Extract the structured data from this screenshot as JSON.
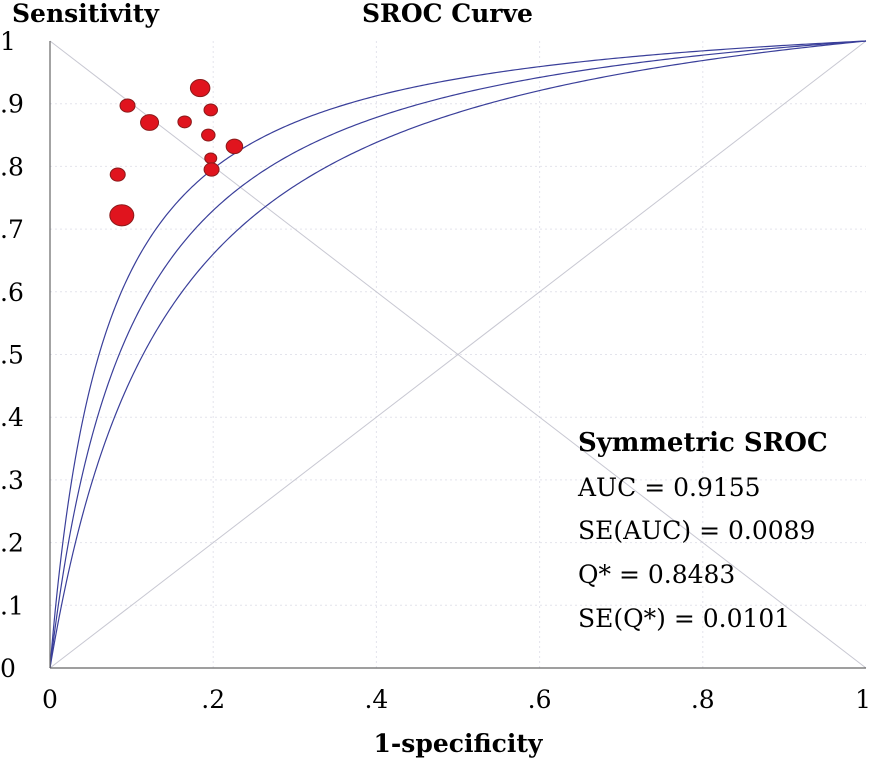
{
  "chart_data": {
    "type": "scatter",
    "title": "SROC Curve",
    "ylabel": "Sensitivity",
    "xlabel": "1-specificity",
    "xlim": [
      0,
      1
    ],
    "ylim": [
      0,
      1
    ],
    "x_ticks": [
      "0",
      ".2",
      ".4",
      ".6",
      ".8",
      "1"
    ],
    "y_ticks": [
      "0",
      ".1",
      ".2",
      ".3",
      ".4",
      ".5",
      ".6",
      ".7",
      ".8",
      ".9",
      "1"
    ],
    "grid": true,
    "points": [
      {
        "x": 0.095,
        "y": 0.897,
        "size": 1.0
      },
      {
        "x": 0.122,
        "y": 0.87,
        "size": 1.2
      },
      {
        "x": 0.083,
        "y": 0.787,
        "size": 1.0
      },
      {
        "x": 0.088,
        "y": 0.722,
        "size": 1.6
      },
      {
        "x": 0.184,
        "y": 0.925,
        "size": 1.3
      },
      {
        "x": 0.165,
        "y": 0.871,
        "size": 0.9
      },
      {
        "x": 0.197,
        "y": 0.89,
        "size": 0.9
      },
      {
        "x": 0.194,
        "y": 0.85,
        "size": 0.9
      },
      {
        "x": 0.197,
        "y": 0.813,
        "size": 0.8
      },
      {
        "x": 0.198,
        "y": 0.795,
        "size": 1.0
      },
      {
        "x": 0.226,
        "y": 0.832,
        "size": 1.1
      }
    ],
    "curves": [
      {
        "role": "upper",
        "theta": 2.75
      },
      {
        "role": "sroc",
        "theta": 2.38
      },
      {
        "role": "lower",
        "theta": 2.05
      }
    ],
    "reference_lines": [
      "diagonal",
      "anti-diagonal"
    ],
    "colors": {
      "points": "#e0141e",
      "point_edge": "#8a1a1a",
      "curves": "#3a3f9a",
      "diagonal": "#c8c8d2",
      "grid": "#e4e4ec"
    },
    "annotation": {
      "heading": "Symmetric SROC",
      "lines": [
        "AUC = 0.9155",
        "SE(AUC) = 0.0089",
        "Q* = 0.8483",
        "SE(Q*) = 0.0101"
      ]
    }
  }
}
